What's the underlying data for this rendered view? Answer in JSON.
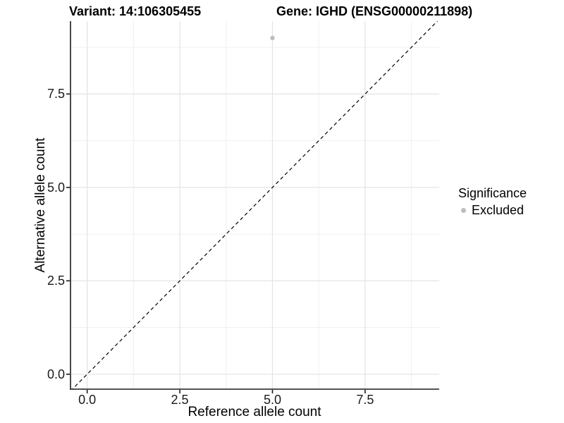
{
  "titles": {
    "left": "Variant: 14:106305455",
    "right": "Gene: IGHD (ENSG00000211898)"
  },
  "axes": {
    "x_label": "Reference allele count",
    "y_label": "Alternative allele count"
  },
  "legend": {
    "title": "Significance",
    "items": [
      {
        "label": "Excluded",
        "color": "#bdbdbd"
      }
    ]
  },
  "colors": {
    "background": "#ffffff",
    "grid_major": "#e3e3e3",
    "grid_minor": "#f0f0f0",
    "axis": "#1a1a1a",
    "reference_line": "#000000",
    "title_text": "#000000",
    "tick_text": "#1a1a1a"
  },
  "chart_data": {
    "type": "scatter",
    "title": "Variant: 14:106305455   Gene: IGHD (ENSG00000211898)",
    "xlabel": "Reference allele count",
    "ylabel": "Alternative allele count",
    "xlim": [
      -0.45,
      9.5
    ],
    "ylim": [
      -0.4,
      9.45
    ],
    "x_ticks": [
      0.0,
      2.5,
      5.0,
      7.5
    ],
    "y_ticks": [
      0.0,
      2.5,
      5.0,
      7.5
    ],
    "x_minor_ticks": [
      1.25,
      3.75,
      6.25,
      8.75
    ],
    "y_minor_ticks": [
      1.25,
      3.75,
      6.25,
      8.75
    ],
    "tick_label_format": "one_decimal",
    "grid": true,
    "legend_position": "right",
    "series": [
      {
        "name": "Excluded",
        "color": "#bdbdbd",
        "point_radius": 3.2,
        "points": [
          {
            "x": 5.0,
            "y": 9.0
          }
        ]
      }
    ],
    "reference_line": {
      "kind": "abline",
      "slope": 1,
      "intercept": 0,
      "style": "dashed",
      "color": "#000000"
    }
  }
}
